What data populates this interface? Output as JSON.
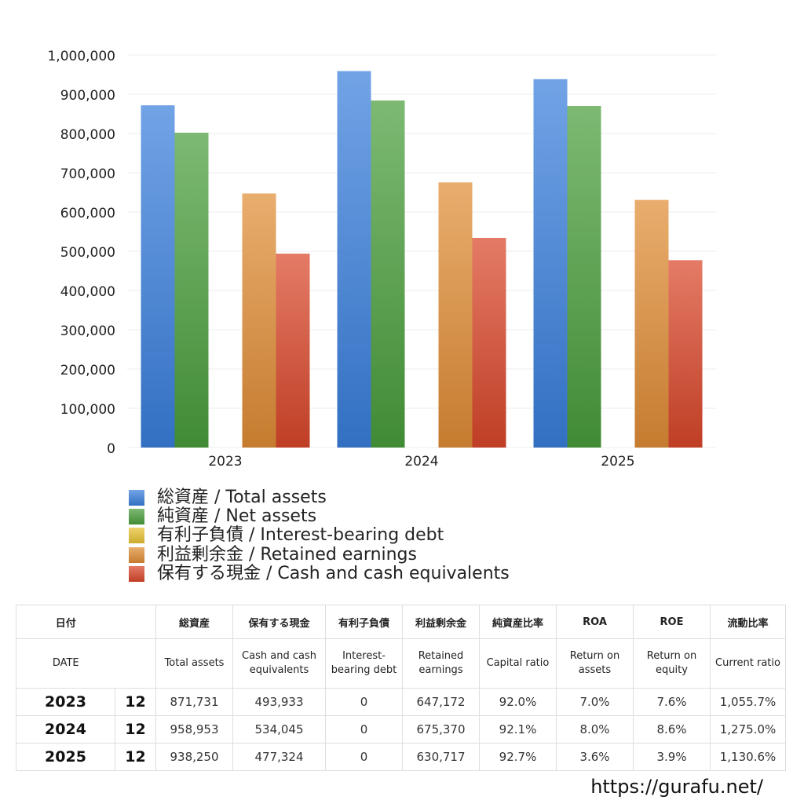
{
  "chart_data": {
    "type": "bar",
    "categories": [
      "2023",
      "2024",
      "2025"
    ],
    "series": [
      {
        "name": "総資産 / Total assets",
        "values": [
          871731,
          958953,
          938250
        ],
        "color": "#3a7fdc"
      },
      {
        "name": "純資産 / Net assets",
        "values": [
          802000,
          884000,
          870000
        ],
        "color": "#4a9e3c"
      },
      {
        "name": "有利子負債 / Interest-bearing debt",
        "values": [
          0,
          0,
          0
        ],
        "color": "#e8c233"
      },
      {
        "name": "利益剰余金 / Retained earnings",
        "values": [
          647172,
          675370,
          630717
        ],
        "color": "#e08d35"
      },
      {
        "name": "保有する現金 /  Cash and cash equivalents",
        "values": [
          493933,
          534045,
          477324
        ],
        "color": "#d9472a"
      }
    ],
    "ylim": [
      0,
      1000000
    ],
    "yticks": [
      "0",
      "100,000",
      "200,000",
      "300,000",
      "400,000",
      "500,000",
      "600,000",
      "700,000",
      "800,000",
      "900,000",
      "1,000,000"
    ],
    "grid": true,
    "legend_position": "bottom"
  },
  "table": {
    "headers_ja": [
      "日付",
      "",
      "総資産",
      "保有する現金",
      "有利子負債",
      "利益剰余金",
      "純資産比率",
      "ROA",
      "ROE",
      "流動比率"
    ],
    "headers_en": [
      "DATE",
      "",
      "Total assets",
      "Cash and cash equivalents",
      "Interest-bearing debt",
      "Retained earnings",
      "Capital ratio",
      "Return on assets",
      "Return on equity",
      "Current ratio"
    ],
    "rows": [
      [
        "2023",
        "12",
        "871,731",
        "493,933",
        "0",
        "647,172",
        "92.0%",
        "7.0%",
        "7.6%",
        "1,055.7%"
      ],
      [
        "2024",
        "12",
        "958,953",
        "534,045",
        "0",
        "675,370",
        "92.1%",
        "8.0%",
        "8.6%",
        "1,275.0%"
      ],
      [
        "2025",
        "12",
        "938,250",
        "477,324",
        "0",
        "630,717",
        "92.7%",
        "3.6%",
        "3.9%",
        "1,130.6%"
      ]
    ]
  },
  "footer": {
    "url": "https://gurafu.net/"
  }
}
